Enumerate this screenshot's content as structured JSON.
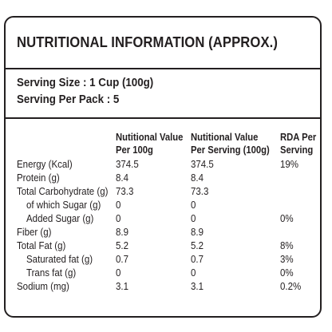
{
  "title": "NUTRITIONAL INFORMATION (APPROX.)",
  "serving_size": "Serving Size : 1 Cup (100g)",
  "serving_per_pack": "Serving Per Pack : 5",
  "columns": {
    "per100_line1": "Nutitional Value",
    "per100_line2": "Per 100g",
    "perserving_line1": "Nutitional Value",
    "perserving_line2": "Per Serving (100g)",
    "rda_line1": "RDA Per",
    "rda_line2": "Serving"
  },
  "rows": [
    {
      "name": "Energy (Kcal)",
      "per100": "374.5",
      "per_serving": "374.5",
      "rda": "19%"
    },
    {
      "name": "Protein (g)",
      "per100": "8.4",
      "per_serving": "8.4",
      "rda": ""
    },
    {
      "name": "Total Carbohydrate (g)",
      "per100": "73.3",
      "per_serving": "73.3",
      "rda": ""
    },
    {
      "name": "of which Sugar (g)",
      "per100": "0",
      "per_serving": "0",
      "rda": ""
    },
    {
      "name": "Added Sugar (g)",
      "per100": "0",
      "per_serving": "0",
      "rda": "0%"
    },
    {
      "name": "Fiber (g)",
      "per100": "8.9",
      "per_serving": "8.9",
      "rda": ""
    },
    {
      "name": "Total Fat (g)",
      "per100": "5.2",
      "per_serving": "5.2",
      "rda": "8%"
    },
    {
      "name": "Saturated fat (g)",
      "per100": "0.7",
      "per_serving": "0.7",
      "rda": "3%"
    },
    {
      "name": "Trans fat (g)",
      "per100": "0",
      "per_serving": "0",
      "rda": "0%"
    },
    {
      "name": "Sodium (mg)",
      "per100": "3.1",
      "per_serving": "3.1",
      "rda": "0.2%"
    }
  ]
}
